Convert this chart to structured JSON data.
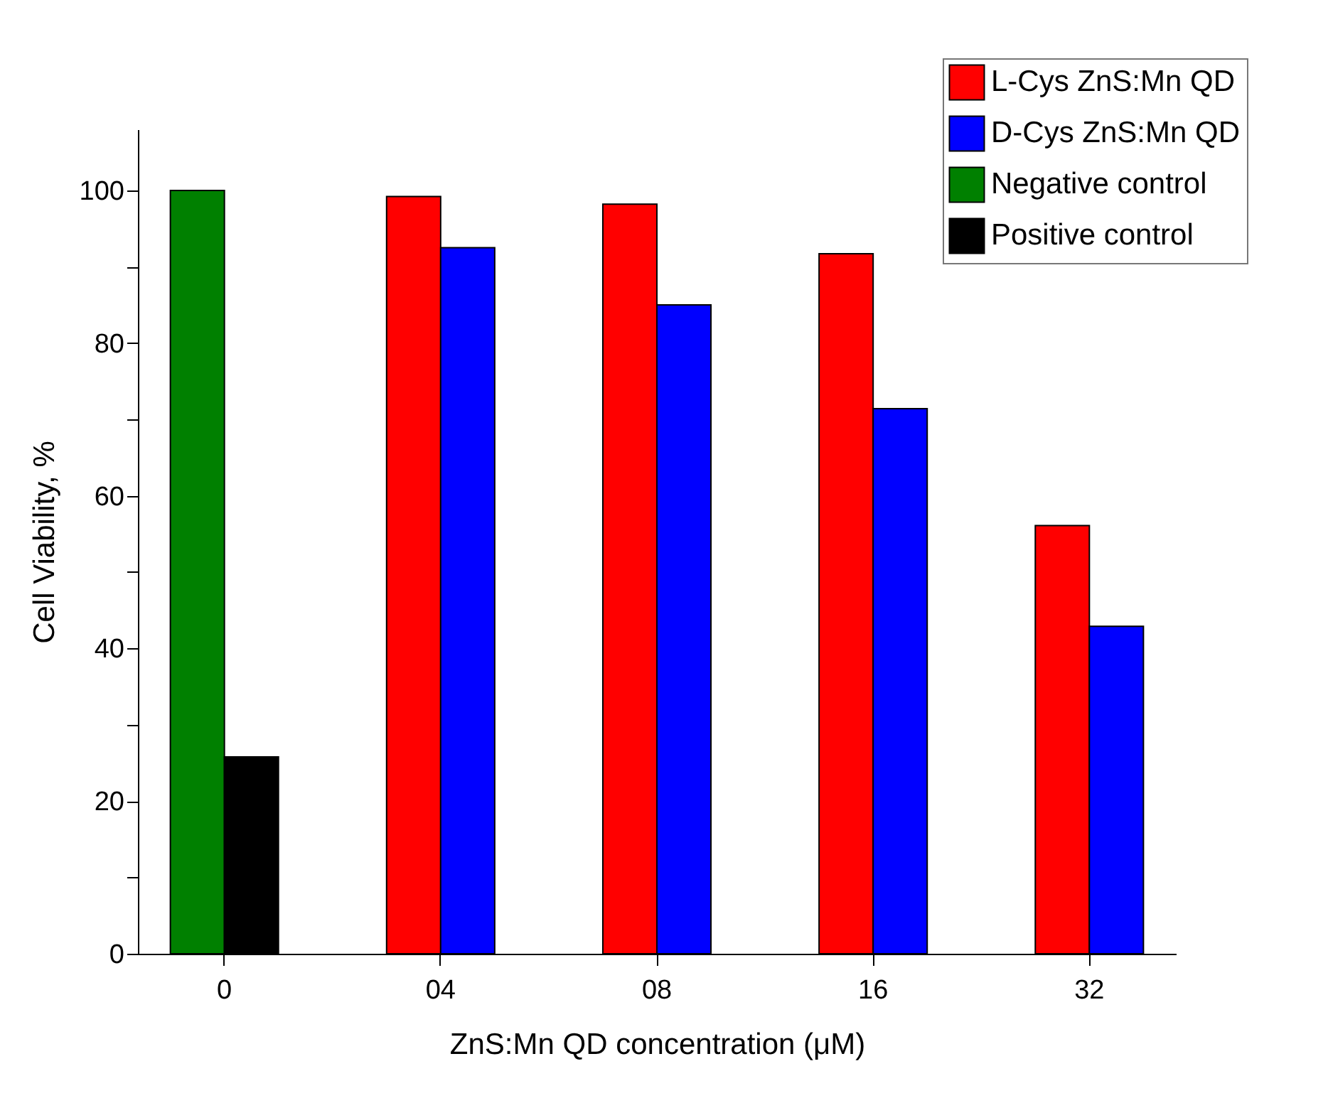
{
  "chart_data": {
    "type": "bar",
    "xlabel": "ZnS:Mn QD concentration (μM)",
    "ylabel": "Cell Viability, %",
    "categories": [
      "0",
      "04",
      "08",
      "16",
      "32"
    ],
    "series": [
      {
        "name": "L-Cys ZnS:Mn QD",
        "color": "#ff0000",
        "values": [
          null,
          99.2,
          98.2,
          91.7,
          56.1
        ]
      },
      {
        "name": "D-Cys ZnS:Mn QD",
        "color": "#0000ff",
        "values": [
          null,
          92.5,
          85.0,
          71.4,
          42.9
        ]
      },
      {
        "name": "Negative control",
        "color": "#008000",
        "values": [
          100,
          null,
          null,
          null,
          null
        ]
      },
      {
        "name": "Positive control",
        "color": "#000000",
        "values": [
          25.8,
          null,
          null,
          null,
          null
        ]
      }
    ],
    "ylim": [
      0,
      108
    ],
    "yticks": [
      0,
      {
        "value": 10,
        "label": null
      },
      20,
      {
        "value": 30,
        "label": null
      },
      40,
      {
        "value": 50,
        "label": null
      },
      60,
      {
        "value": 70,
        "label": null
      },
      80,
      {
        "value": 90,
        "label": null
      },
      100
    ],
    "grid": false,
    "legend": "top right"
  }
}
